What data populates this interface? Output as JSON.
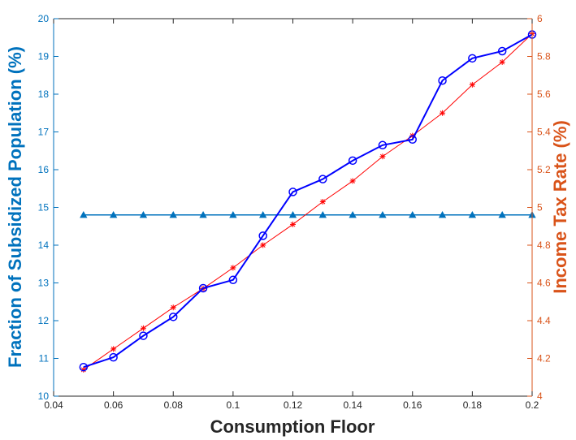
{
  "chart_data": {
    "type": "line",
    "xlabel": "Consumption Floor",
    "ylabel_left": "Fraction of Subsidized Population (%)",
    "ylabel_right": "Income Tax Rate (%)",
    "xlim": [
      0.04,
      0.2
    ],
    "ylim_left": [
      10,
      20
    ],
    "ylim_right": [
      4,
      6
    ],
    "grid": false,
    "colors": {
      "left_axis": "#0072BD",
      "right_axis": "#D95319",
      "subsidized": "#0000FF",
      "tax": "#FF0000",
      "reference": "#0072BD"
    },
    "x_ticks": [
      0.04,
      0.06,
      0.08,
      0.1,
      0.12,
      0.14,
      0.16,
      0.18,
      0.2
    ],
    "x_tick_labels": [
      "0.04",
      "0.06",
      "0.08",
      "0.1",
      "0.12",
      "0.14",
      "0.16",
      "0.18",
      "0.2"
    ],
    "y_left_ticks": [
      10,
      11,
      12,
      13,
      14,
      15,
      16,
      17,
      18,
      19,
      20
    ],
    "y_left_tick_labels": [
      "10",
      "11",
      "12",
      "13",
      "14",
      "15",
      "16",
      "17",
      "18",
      "19",
      "20"
    ],
    "y_right_ticks": [
      4,
      4.2,
      4.4,
      4.6,
      4.8,
      5,
      5.2,
      5.4,
      5.6,
      5.8,
      6
    ],
    "y_right_tick_labels": [
      "4",
      "4.2",
      "4.4",
      "4.6",
      "4.8",
      "5",
      "5.2",
      "5.4",
      "5.6",
      "5.8",
      "6"
    ],
    "x": [
      0.05,
      0.06,
      0.07,
      0.08,
      0.09,
      0.1,
      0.11,
      0.12,
      0.13,
      0.14,
      0.15,
      0.16,
      0.17,
      0.18,
      0.19,
      0.2
    ],
    "series": [
      {
        "axis": "left",
        "marker": "circle",
        "values": [
          10.77,
          11.03,
          11.6,
          12.1,
          12.86,
          13.08,
          14.25,
          15.41,
          15.75,
          16.24,
          16.65,
          16.8,
          18.36,
          18.95,
          19.14,
          19.58
        ]
      },
      {
        "axis": "right",
        "marker": "asterisk",
        "values": [
          4.14,
          4.25,
          4.36,
          4.47,
          4.57,
          4.68,
          4.8,
          4.91,
          5.03,
          5.14,
          5.27,
          5.38,
          5.5,
          5.65,
          5.77,
          5.92
        ]
      },
      {
        "axis": "left",
        "marker": "triangle",
        "values": [
          14.8,
          14.8,
          14.8,
          14.8,
          14.8,
          14.8,
          14.8,
          14.8,
          14.8,
          14.8,
          14.8,
          14.8,
          14.8,
          14.8,
          14.8,
          14.8
        ]
      }
    ]
  }
}
